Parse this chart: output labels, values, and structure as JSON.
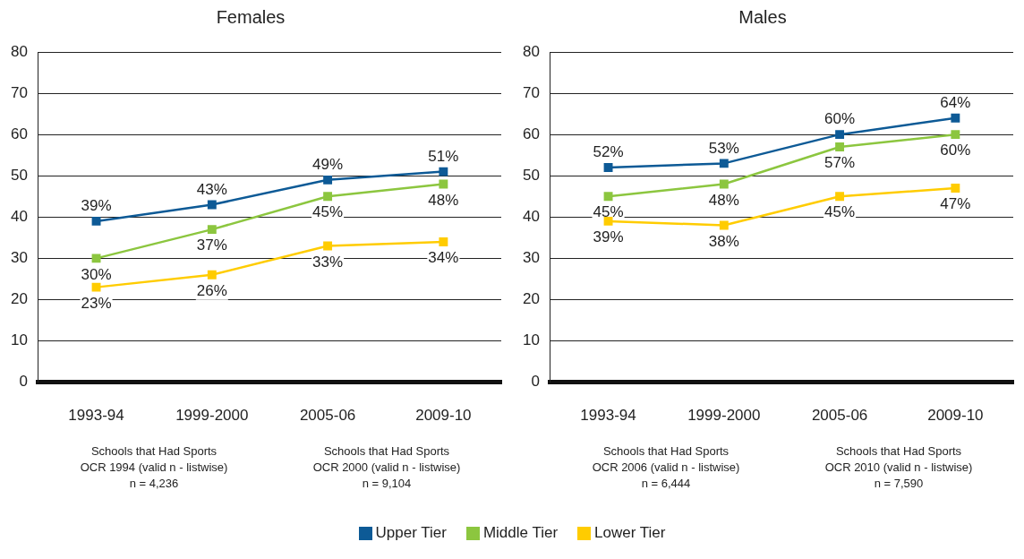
{
  "chart_data": [
    {
      "type": "line",
      "title": "Females",
      "categories": [
        "1993-94",
        "1999-2000",
        "2005-06",
        "2009-10"
      ],
      "series": [
        {
          "name": "Upper Tier",
          "color": "#0d5a96",
          "values": [
            39,
            43,
            49,
            51
          ],
          "value_labels": [
            "39%",
            "43%",
            "49%",
            "51%"
          ]
        },
        {
          "name": "Middle Tier",
          "color": "#8cc63f",
          "values": [
            30,
            37,
            45,
            48
          ],
          "value_labels": [
            "30%",
            "37%",
            "45%",
            "48%"
          ]
        },
        {
          "name": "Lower Tier",
          "color": "#ffcc00",
          "values": [
            23,
            26,
            33,
            34
          ],
          "value_labels": [
            "23%",
            "26%",
            "33%",
            "34%"
          ]
        }
      ],
      "ylim": [
        0,
        80
      ],
      "yticks": [
        0,
        10,
        20,
        30,
        40,
        50,
        60,
        70,
        80
      ],
      "grid": "y",
      "marker": "square",
      "legend": "bottom",
      "annotations": [
        "Schools that Had Sports\nOCR 1994 (valid n - listwise)\nn = 4,236",
        "Schools that Had Sports\nOCR 2000 (valid n - listwise)\nn = 9,104"
      ]
    },
    {
      "type": "line",
      "title": "Males",
      "categories": [
        "1993-94",
        "1999-2000",
        "2005-06",
        "2009-10"
      ],
      "series": [
        {
          "name": "Upper Tier",
          "color": "#0d5a96",
          "values": [
            52,
            53,
            60,
            64
          ],
          "value_labels": [
            "52%",
            "53%",
            "60%",
            "64%"
          ]
        },
        {
          "name": "Middle Tier",
          "color": "#8cc63f",
          "values": [
            45,
            48,
            57,
            60
          ],
          "value_labels": [
            "45%",
            "48%",
            "57%",
            "60%"
          ]
        },
        {
          "name": "Lower Tier",
          "color": "#ffcc00",
          "values": [
            39,
            38,
            45,
            47
          ],
          "value_labels": [
            "39%",
            "38%",
            "45%",
            "47%"
          ]
        }
      ],
      "ylim": [
        0,
        80
      ],
      "yticks": [
        0,
        10,
        20,
        30,
        40,
        50,
        60,
        70,
        80
      ],
      "grid": "y",
      "marker": "square",
      "legend": "bottom",
      "annotations": [
        "Schools that Had Sports\nOCR 2006 (valid n - listwise)\nn = 6,444",
        "Schools that Had Sports\nOCR 2010 (valid n - listwise)\nn = 7,590"
      ]
    }
  ]
}
